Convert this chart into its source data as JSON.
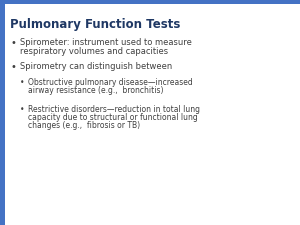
{
  "title": "Pulmonary Function Tests",
  "title_color": "#1F3864",
  "title_fontsize": 8.5,
  "bg_color": "#FFFFFF",
  "header_bar_color": "#4472C4",
  "left_bar_color": "#4472C4",
  "body_text_color": "#404040",
  "body_fontsize": 6.0,
  "sub_fontsize": 5.5,
  "bullet1_line1": "Spirometer: instrument used to measure",
  "bullet1_line2": "respiratory volumes and capacities",
  "bullet2": "Spirometry can distinguish between",
  "sub_bullet1_line1": "Obstructive pulmonary disease—increased",
  "sub_bullet1_line2": "airway resistance (e.g.,  bronchitis)",
  "sub_bullet2_line1": "Restrictive disorders—reduction in total lung",
  "sub_bullet2_line2": "capacity due to structural or functional lung",
  "sub_bullet2_line3": "changes (e.g.,  fibrosis or TB)"
}
